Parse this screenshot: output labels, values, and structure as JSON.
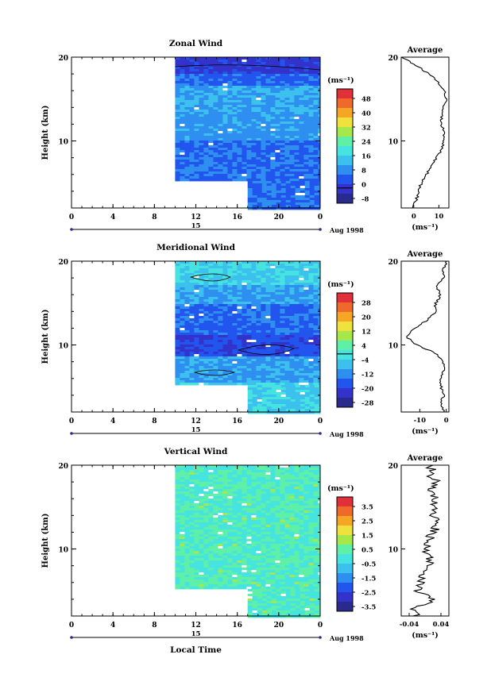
{
  "figure": {
    "xlabel": "Local Time",
    "date_label": "Aug 1998",
    "day_label": "15",
    "x_ticks": [
      "0",
      "4",
      "8",
      "12",
      "16",
      "20",
      "0"
    ],
    "y_ticks": [
      "10",
      "20"
    ],
    "ylabel": "Height (km)",
    "unit_label": "(ms⁻¹)",
    "avg_title": "Average"
  },
  "chart_data": [
    {
      "type": "heatmap",
      "title": "Zonal Wind",
      "xlabel": "Local Time",
      "ylabel": "Height (km)",
      "xlim": [
        0,
        24
      ],
      "ylim": [
        2,
        20
      ],
      "data_coverage": {
        "full_heights_from_hour": 10,
        "low_heights_from_hour": 17,
        "low_height_limit_km": 5
      },
      "colorbar": {
        "ticks": [
          "48",
          "40",
          "32",
          "24",
          "16",
          "8",
          "0",
          "-8"
        ],
        "range": [
          -8,
          52
        ],
        "contour": 0
      },
      "profile": {
        "title": "Average",
        "xticks": [
          "0",
          "10"
        ],
        "xlim": [
          -5,
          14
        ],
        "heights": [
          2,
          3,
          4,
          5,
          6,
          7,
          8,
          9,
          10,
          11,
          12,
          13,
          14,
          15,
          16,
          17,
          18,
          19,
          20
        ],
        "values": [
          0,
          1,
          2,
          3,
          5,
          7,
          9,
          11,
          12,
          12,
          11,
          11,
          12,
          13,
          12,
          10,
          6,
          1,
          -5
        ]
      }
    },
    {
      "type": "heatmap",
      "title": "Meridional Wind",
      "xlabel": "Local Time",
      "ylabel": "Height (km)",
      "xlim": [
        0,
        24
      ],
      "ylim": [
        2,
        20
      ],
      "data_coverage": {
        "full_heights_from_hour": 10,
        "low_heights_from_hour": 17,
        "low_height_limit_km": 5
      },
      "colorbar": {
        "ticks": [
          "28",
          "20",
          "12",
          "4",
          "-4",
          "-12",
          "-20",
          "-28"
        ],
        "range": [
          -28,
          32
        ],
        "contour": 0
      },
      "profile": {
        "title": "Average",
        "xticks": [
          "-10",
          "0"
        ],
        "xlim": [
          -17,
          1
        ],
        "heights": [
          2,
          3,
          4,
          5,
          6,
          7,
          8,
          9,
          10,
          11,
          12,
          13,
          14,
          15,
          16,
          17,
          18,
          19,
          20
        ],
        "values": [
          -1,
          -2,
          -1,
          -2,
          -2,
          -1,
          -1,
          -4,
          -11,
          -15,
          -12,
          -7,
          -4,
          -4,
          -2,
          -4,
          -1,
          -1,
          0
        ]
      }
    },
    {
      "type": "heatmap",
      "title": "Vertical Wind",
      "xlabel": "Local Time",
      "ylabel": "Height (km)",
      "xlim": [
        0,
        24
      ],
      "ylim": [
        2,
        20
      ],
      "data_coverage": {
        "full_heights_from_hour": 10,
        "low_heights_from_hour": 17,
        "low_height_limit_km": 5
      },
      "colorbar": {
        "ticks": [
          "3.5",
          "2.5",
          "1.5",
          "0.5",
          "-0.5",
          "-1.5",
          "-2.5",
          "-3.5"
        ],
        "range": [
          -4,
          4
        ]
      },
      "profile": {
        "title": "Average",
        "xticks": [
          "-0.04",
          "0.04"
        ],
        "xlim": [
          -0.06,
          0.06
        ],
        "heights": [
          2,
          3,
          4,
          5,
          6,
          7,
          8,
          9,
          10,
          11,
          12,
          13,
          14,
          15,
          16,
          17,
          18,
          19,
          20
        ],
        "values": [
          -0.02,
          -0.03,
          0.03,
          -0.02,
          -0.01,
          0.0,
          0.01,
          0.01,
          0.0,
          0.01,
          0.02,
          0.03,
          0.02,
          0.02,
          0.03,
          0.02,
          0.03,
          0.01,
          0.02
        ]
      }
    }
  ]
}
